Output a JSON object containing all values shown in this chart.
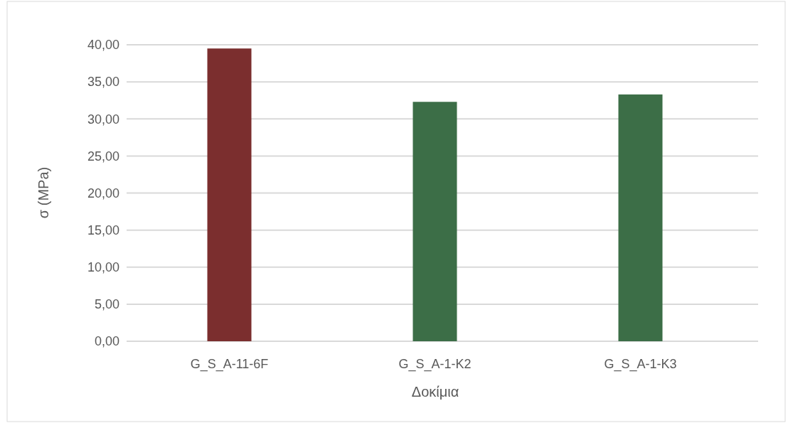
{
  "chart_data": {
    "type": "bar",
    "xlabel": "Δοκίμια",
    "ylabel": "σ (MPa)",
    "categories": [
      "G_S_A-11-6F",
      "G_S_A-1-K2",
      "G_S_A-1-K3"
    ],
    "values": [
      39.5,
      32.3,
      33.3
    ],
    "colors": [
      "#7b2e2e",
      "#3c6e47",
      "#3c6e47"
    ],
    "ylim": [
      0,
      40
    ],
    "yticks": [
      {
        "value": 0,
        "label": "0,00"
      },
      {
        "value": 5,
        "label": "5,00"
      },
      {
        "value": 10,
        "label": "10,00"
      },
      {
        "value": 15,
        "label": "15,00"
      },
      {
        "value": 20,
        "label": "20,00"
      },
      {
        "value": 25,
        "label": "25,00"
      },
      {
        "value": 30,
        "label": "30,00"
      },
      {
        "value": 35,
        "label": "35,00"
      },
      {
        "value": 40,
        "label": "40,00"
      }
    ],
    "grid": "y"
  }
}
